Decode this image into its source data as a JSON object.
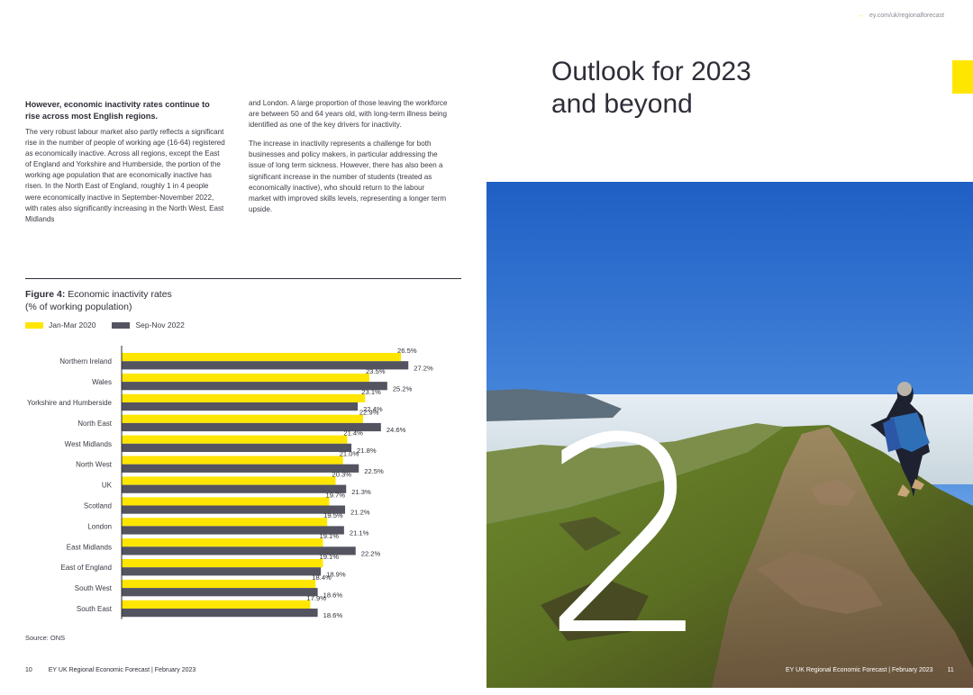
{
  "left_page": {
    "lead": "However, economic inactivity rates continue to rise across most English regions.",
    "col1_para": "The very robust labour market also partly reflects a significant rise in the number of people of working age (16-64) registered as economically inactive. Across all regions, except the East of England and Yorkshire and Humberside, the portion of the working age population that are economically inactive has risen. In the North East of England, roughly 1 in 4 people were economically inactive in September-November 2022, with rates also significantly increasing in the North West, East Midlands",
    "col2_para1": "and London. A large proportion of those leaving the workforce are between 50 and 64 years old, with long-term illness being identified as one of the key drivers for inactivity.",
    "col2_para2": "The increase in inactivity represents a challenge for both businesses and policy makers, in particular addressing the issue of long term sickness. However, there has also been a significant increase in the number of students (treated as economically inactive), who should return to the labour market with improved skills levels, representing a longer term upside.",
    "figure_label": "Figure 4:",
    "figure_title": "Economic inactivity rates",
    "figure_subtitle": "(% of working population)",
    "source": "Source: ONS",
    "page_number": "10",
    "footer": "EY UK Regional Economic Forecast | February 2023"
  },
  "right_page": {
    "url": "ey.com/uk/regionalforecast",
    "heading_line1": "Outlook for 2023",
    "heading_line2": "and beyond",
    "chapter_number": "2",
    "footer": "EY UK Regional Economic Forecast | February 2023",
    "page_number": "11"
  },
  "colors": {
    "series1": "#ffe600",
    "series2": "#545461",
    "text": "#2e2e38"
  },
  "chart_data": {
    "type": "bar",
    "orientation": "horizontal",
    "categories": [
      "Northern Ireland",
      "Wales",
      "Yorkshire and Humberside",
      "North East",
      "West Midlands",
      "North West",
      "UK",
      "Scotland",
      "London",
      "East Midlands",
      "East of England",
      "South West",
      "South East"
    ],
    "series": [
      {
        "name": "Jan-Mar 2020",
        "values": [
          26.5,
          23.5,
          23.1,
          22.9,
          21.4,
          21.0,
          20.3,
          19.7,
          19.5,
          19.1,
          19.1,
          18.4,
          17.9
        ]
      },
      {
        "name": "Sep-Nov 2022",
        "values": [
          27.2,
          25.2,
          22.4,
          24.6,
          21.8,
          22.5,
          21.3,
          21.2,
          21.1,
          22.2,
          18.9,
          18.6,
          18.6
        ]
      }
    ],
    "value_suffix": "%",
    "legend_position": "top-left",
    "grid": false
  }
}
